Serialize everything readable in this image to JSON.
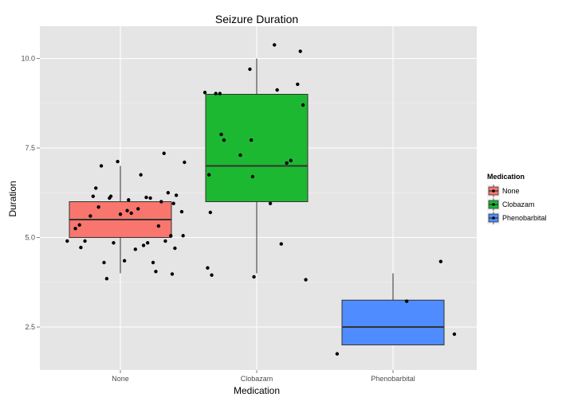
{
  "chart_data": {
    "type": "box",
    "title": "Seizure Duration",
    "xlabel": "Medication",
    "ylabel": "Duration",
    "categories": [
      "None",
      "Clobazam",
      "Phenobarbital"
    ],
    "ylim": [
      1.3,
      10.9
    ],
    "yticks": [
      2.5,
      5.0,
      7.5,
      10.0
    ],
    "yticklabels": [
      "2.5",
      "5.0",
      "7.5",
      "10.0"
    ],
    "grid": true,
    "legend": {
      "title": "Medication",
      "position": "right",
      "entries": [
        "None",
        "Clobazam",
        "Phenobarbital"
      ]
    },
    "colors": {
      "None": "#f8766d",
      "Clobazam": "#1db832",
      "Phenobarbital": "#4f8cff",
      "panel": "#e5e5e5",
      "grid": "#ffffff"
    },
    "boxes": [
      {
        "category": "None",
        "whisker_low": 4.0,
        "q1": 5.0,
        "median": 5.5,
        "q3": 6.0,
        "whisker_high": 7.0
      },
      {
        "category": "Clobazam",
        "whisker_low": 4.0,
        "q1": 6.0,
        "median": 7.0,
        "q3": 9.0,
        "whisker_high": 10.0
      },
      {
        "category": "Phenobarbital",
        "whisker_low": 2.0,
        "q1": 2.0,
        "median": 2.5,
        "q3": 3.25,
        "whisker_high": 4.0
      }
    ],
    "points": [
      {
        "category": "None",
        "x_jitter": [
          -0.39,
          -0.33,
          -0.3,
          -0.29,
          -0.26,
          -0.22,
          -0.2,
          -0.18,
          -0.16,
          -0.14,
          -0.12,
          -0.1,
          -0.08,
          -0.07,
          -0.05,
          -0.02,
          0.0,
          0.03,
          0.05,
          0.06,
          0.08,
          0.11,
          0.13,
          0.15,
          0.17,
          0.19,
          0.2,
          0.22,
          0.24,
          0.26,
          0.28,
          0.3,
          0.32,
          0.33,
          0.35,
          0.37,
          0.38,
          0.39,
          0.4,
          0.41,
          0.45,
          0.46,
          0.47
        ],
        "y": [
          4.9,
          5.25,
          5.35,
          4.72,
          4.9,
          5.6,
          6.15,
          6.38,
          5.85,
          7.0,
          4.3,
          3.85,
          6.1,
          6.15,
          4.85,
          7.12,
          5.65,
          4.35,
          5.75,
          6.05,
          5.68,
          4.67,
          5.8,
          6.75,
          4.78,
          6.12,
          4.85,
          6.1,
          4.3,
          4.05,
          5.32,
          6.0,
          7.35,
          4.9,
          6.25,
          5.05,
          3.98,
          5.95,
          4.7,
          6.18,
          5.72,
          5.05,
          7.1
        ]
      },
      {
        "category": "Clobazam",
        "x_jitter": [
          -0.38,
          -0.36,
          -0.35,
          -0.34,
          -0.33,
          -0.3,
          -0.26,
          -0.27,
          -0.24,
          -0.12,
          -0.05,
          -0.04,
          -0.03,
          -0.02,
          0.1,
          0.13,
          0.15,
          0.18,
          0.22,
          0.25,
          0.3,
          0.32,
          0.34,
          0.36
        ],
        "y": [
          9.05,
          4.15,
          6.75,
          5.7,
          3.95,
          9.02,
          7.88,
          9.02,
          7.72,
          7.3,
          9.7,
          7.72,
          6.7,
          3.9,
          5.95,
          10.38,
          9.12,
          4.82,
          7.08,
          7.15,
          9.28,
          10.2,
          8.7,
          3.82
        ]
      },
      {
        "category": "Phenobarbital",
        "x_jitter": [
          -0.41,
          0.1,
          0.35,
          0.45
        ],
        "y": [
          1.75,
          3.22,
          4.33,
          2.3
        ]
      }
    ]
  }
}
